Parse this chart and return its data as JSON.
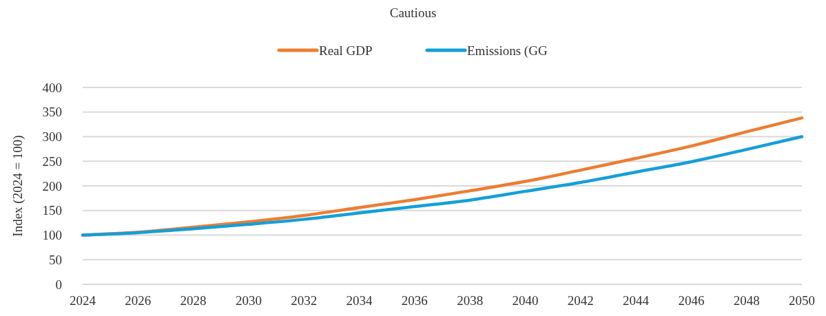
{
  "chart_data": {
    "type": "line",
    "title": "Cautious",
    "ylabel": "Index (2024 = 100)",
    "x": [
      2024,
      2026,
      2028,
      2030,
      2032,
      2034,
      2036,
      2038,
      2040,
      2042,
      2044,
      2046,
      2048,
      2050
    ],
    "xlim": [
      2024,
      2050
    ],
    "xticks": [
      2024,
      2026,
      2028,
      2030,
      2032,
      2034,
      2036,
      2038,
      2040,
      2042,
      2044,
      2046,
      2048,
      2050
    ],
    "ylim": [
      0,
      400
    ],
    "yticks": [
      0,
      50,
      100,
      150,
      200,
      250,
      300,
      350,
      400
    ],
    "grid": "y",
    "legend": "top",
    "marker": "none",
    "line_style": "solid",
    "series": [
      {
        "name": "Real GDP",
        "color": "#ed7d31",
        "values": [
          100,
          106,
          116,
          127,
          140,
          156,
          172,
          190,
          209,
          232,
          256,
          281,
          310,
          338
        ]
      },
      {
        "name": "Emissions (GG",
        "color": "#149fd8",
        "values": [
          100,
          105,
          113,
          122,
          132,
          145,
          158,
          171,
          189,
          207,
          228,
          249,
          274,
          300
        ]
      }
    ]
  }
}
